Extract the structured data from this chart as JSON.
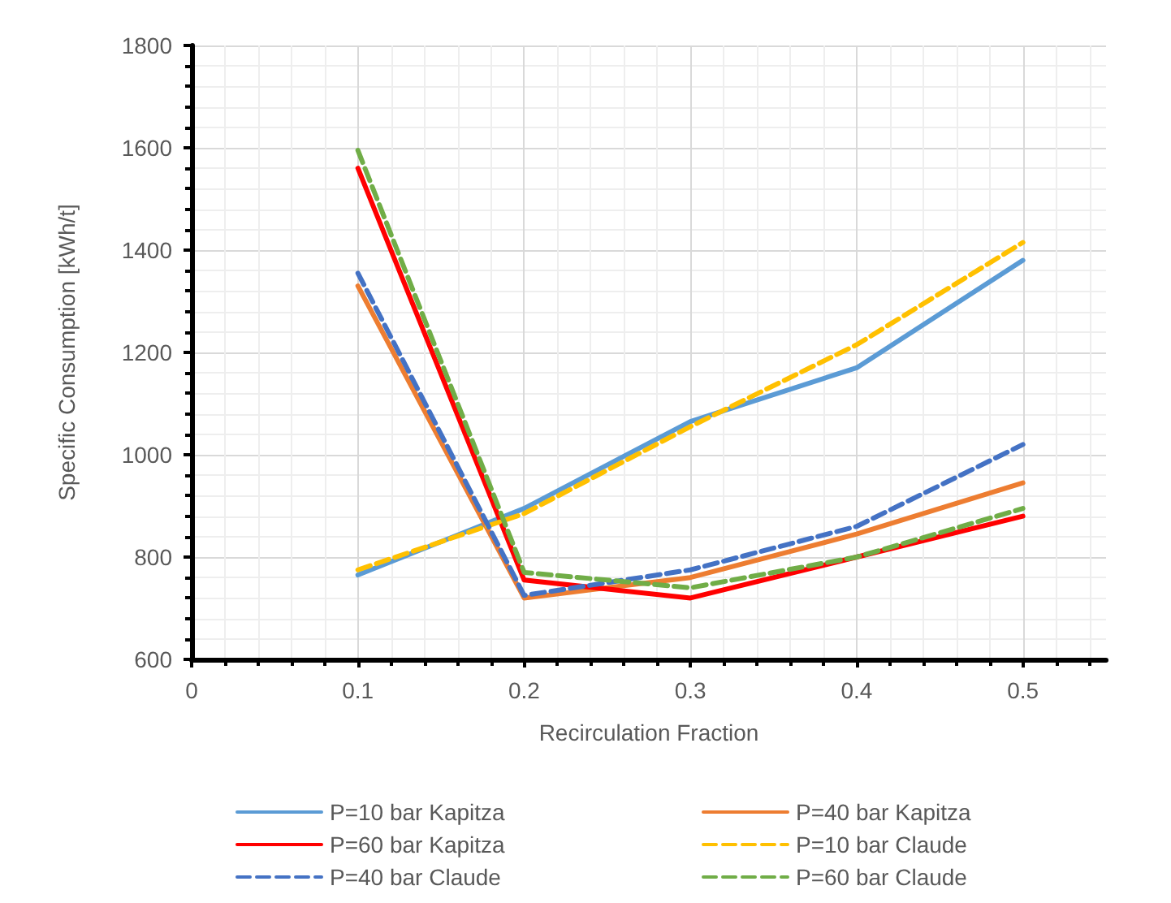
{
  "chart_data": {
    "type": "line",
    "xlabel": "Recirculation Fraction",
    "ylabel": "Specific Consumption [kWh/t]",
    "x": [
      0.1,
      0.2,
      0.3,
      0.4,
      0.5
    ],
    "xlim": [
      0,
      0.55
    ],
    "xticks": [
      0,
      0.1,
      0.2,
      0.3,
      0.4,
      0.5
    ],
    "ylim": [
      600,
      1800
    ],
    "yticks": [
      600,
      800,
      1000,
      1200,
      1400,
      1600,
      1800
    ],
    "grid": true,
    "legend": "bottom",
    "marker": "none",
    "series": [
      {
        "name": "P=10 bar Kapitza",
        "color": "#5b9bd5",
        "line_style": "solid",
        "values": [
          765,
          895,
          1065,
          1170,
          1380
        ]
      },
      {
        "name": "P=40 bar Kapitza",
        "color": "#ed7d31",
        "line_style": "solid",
        "values": [
          1330,
          720,
          760,
          845,
          945
        ]
      },
      {
        "name": "P=60 bar Kapitza",
        "color": "#ff0000",
        "line_style": "solid",
        "values": [
          1560,
          755,
          720,
          800,
          880
        ]
      },
      {
        "name": "P=10 bar Claude",
        "color": "#ffc000",
        "line_style": "dashed",
        "values": [
          775,
          885,
          1055,
          1215,
          1415
        ]
      },
      {
        "name": "P=40 bar Claude",
        "color": "#4472c4",
        "line_style": "dashed",
        "values": [
          1355,
          725,
          775,
          860,
          1020
        ]
      },
      {
        "name": "P=60 bar Claude",
        "color": "#70ad47",
        "line_style": "dashed",
        "values": [
          1595,
          770,
          740,
          800,
          895
        ]
      }
    ]
  }
}
